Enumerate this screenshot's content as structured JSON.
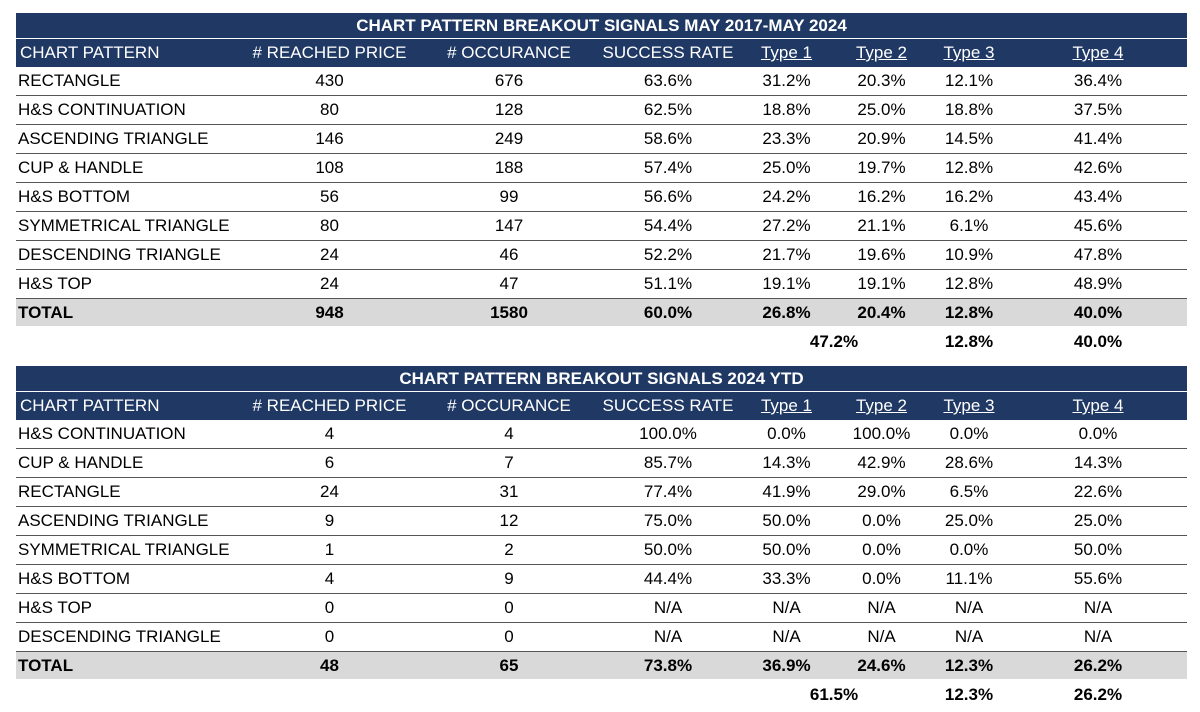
{
  "table1": {
    "title": "CHART PATTERN BREAKOUT SIGNALS MAY 2017-MAY 2024",
    "headers": [
      "CHART PATTERN",
      "# REACHED PRICE OBJ",
      "# OCCURANCE",
      "SUCCESS RATE",
      "Type 1",
      "Type 2",
      "Type 3",
      "Type 4"
    ],
    "rows": [
      [
        "RECTANGLE",
        "430",
        "676",
        "63.6%",
        "31.2%",
        "20.3%",
        "12.1%",
        "36.4%"
      ],
      [
        "H&S CONTINUATION",
        "80",
        "128",
        "62.5%",
        "18.8%",
        "25.0%",
        "18.8%",
        "37.5%"
      ],
      [
        "ASCENDING TRIANGLE",
        "146",
        "249",
        "58.6%",
        "23.3%",
        "20.9%",
        "14.5%",
        "41.4%"
      ],
      [
        "CUP & HANDLE",
        "108",
        "188",
        "57.4%",
        "25.0%",
        "19.7%",
        "12.8%",
        "42.6%"
      ],
      [
        "H&S BOTTOM",
        "56",
        "99",
        "56.6%",
        "24.2%",
        "16.2%",
        "16.2%",
        "43.4%"
      ],
      [
        "SYMMETRICAL TRIANGLE",
        "80",
        "147",
        "54.4%",
        "27.2%",
        "21.1%",
        "6.1%",
        "45.6%"
      ],
      [
        "DESCENDING TRIANGLE",
        "24",
        "46",
        "52.2%",
        "21.7%",
        "19.6%",
        "10.9%",
        "47.8%"
      ],
      [
        "H&S TOP",
        "24",
        "47",
        "51.1%",
        "19.1%",
        "19.1%",
        "12.8%",
        "48.9%"
      ]
    ],
    "total": [
      "TOTAL",
      "948",
      "1580",
      "60.0%",
      "26.8%",
      "20.4%",
      "12.8%",
      "40.0%"
    ],
    "extra": {
      "type12": "47.2%",
      "type3": "12.8%",
      "type4": "40.0%"
    }
  },
  "table2": {
    "title": "CHART PATTERN BREAKOUT SIGNALS 2024 YTD",
    "headers": [
      "CHART PATTERN",
      "# REACHED PRICE OBJ",
      "# OCCURANCE",
      "SUCCESS RATE",
      "Type 1",
      "Type 2",
      "Type 3",
      "Type 4"
    ],
    "rows": [
      [
        "H&S CONTINUATION",
        "4",
        "4",
        "100.0%",
        "0.0%",
        "100.0%",
        "0.0%",
        "0.0%"
      ],
      [
        "CUP & HANDLE",
        "6",
        "7",
        "85.7%",
        "14.3%",
        "42.9%",
        "28.6%",
        "14.3%"
      ],
      [
        "RECTANGLE",
        "24",
        "31",
        "77.4%",
        "41.9%",
        "29.0%",
        "6.5%",
        "22.6%"
      ],
      [
        "ASCENDING TRIANGLE",
        "9",
        "12",
        "75.0%",
        "50.0%",
        "0.0%",
        "25.0%",
        "25.0%"
      ],
      [
        "SYMMETRICAL TRIANGLE",
        "1",
        "2",
        "50.0%",
        "50.0%",
        "0.0%",
        "0.0%",
        "50.0%"
      ],
      [
        "H&S BOTTOM",
        "4",
        "9",
        "44.4%",
        "33.3%",
        "0.0%",
        "11.1%",
        "55.6%"
      ],
      [
        "H&S TOP",
        "0",
        "0",
        "N/A",
        "N/A",
        "N/A",
        "N/A",
        "N/A"
      ],
      [
        "DESCENDING TRIANGLE",
        "0",
        "0",
        "N/A",
        "N/A",
        "N/A",
        "N/A",
        "N/A"
      ]
    ],
    "total": [
      "TOTAL",
      "48",
      "65",
      "73.8%",
      "36.9%",
      "24.6%",
      "12.3%",
      "26.2%"
    ],
    "extra": {
      "type12": "61.5%",
      "type3": "12.3%",
      "type4": "26.2%"
    }
  }
}
